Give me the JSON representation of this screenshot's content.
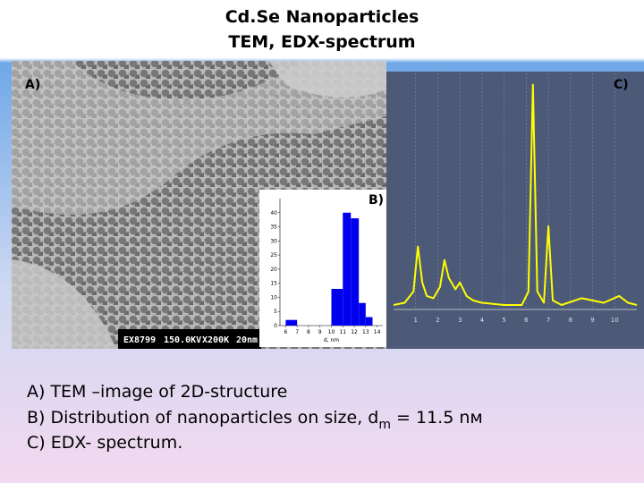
{
  "header": {
    "title": "Cd.Se Nanoparticles",
    "subtitle": "TEM, EDX-spectrum"
  },
  "panels": {
    "a": "A)",
    "b": "B)",
    "c": "C)"
  },
  "tem": {
    "scale_bar": [
      "EX8799",
      "150.0KV",
      "X200K",
      "20nm"
    ]
  },
  "chart_data": [
    {
      "type": "histogram",
      "bins": [
        6,
        7,
        10,
        11,
        11.7,
        12.4,
        13,
        13.6
      ],
      "values": [
        2,
        0,
        13,
        40,
        38,
        8,
        3
      ],
      "color": "#0000ee",
      "xlim": [
        5.5,
        14.5
      ],
      "xticks": [
        6,
        7,
        8,
        9,
        10,
        11,
        12,
        13,
        14
      ],
      "ylim": [
        0,
        45
      ],
      "yticks": [
        0,
        5,
        10,
        15,
        20,
        25,
        30,
        35,
        40
      ],
      "x_label": "d, nm"
    },
    {
      "type": "line",
      "x": [
        0,
        0.5,
        0.9,
        1.1,
        1.3,
        1.5,
        1.8,
        2.1,
        2.3,
        2.5,
        2.8,
        3.0,
        3.3,
        3.6,
        4,
        5,
        5.8,
        6.1,
        6.3,
        6.5,
        6.8,
        7.0,
        7.2,
        7.6,
        8.5,
        9.5,
        10.2,
        10.6,
        11
      ],
      "series": [
        {
          "color": "#ffff00",
          "values": [
            2,
            3,
            8,
            28,
            12,
            6,
            5,
            10,
            22,
            14,
            9,
            12,
            6,
            4,
            3,
            2,
            2,
            8,
            100,
            8,
            3,
            37,
            4,
            2,
            5,
            3,
            6,
            3,
            2
          ]
        }
      ],
      "xlim": [
        0,
        11
      ],
      "xticks": [
        1,
        2,
        3,
        4,
        5,
        6,
        7,
        8,
        9,
        10
      ],
      "ylim": [
        0,
        105
      ]
    }
  ],
  "captions": [
    "A) TEM –image of 2D-structure",
    [
      "B) Distribution of nanoparticles on size, d",
      "m",
      " = 11.5 nм"
    ],
    "C) EDX- spectrum."
  ]
}
